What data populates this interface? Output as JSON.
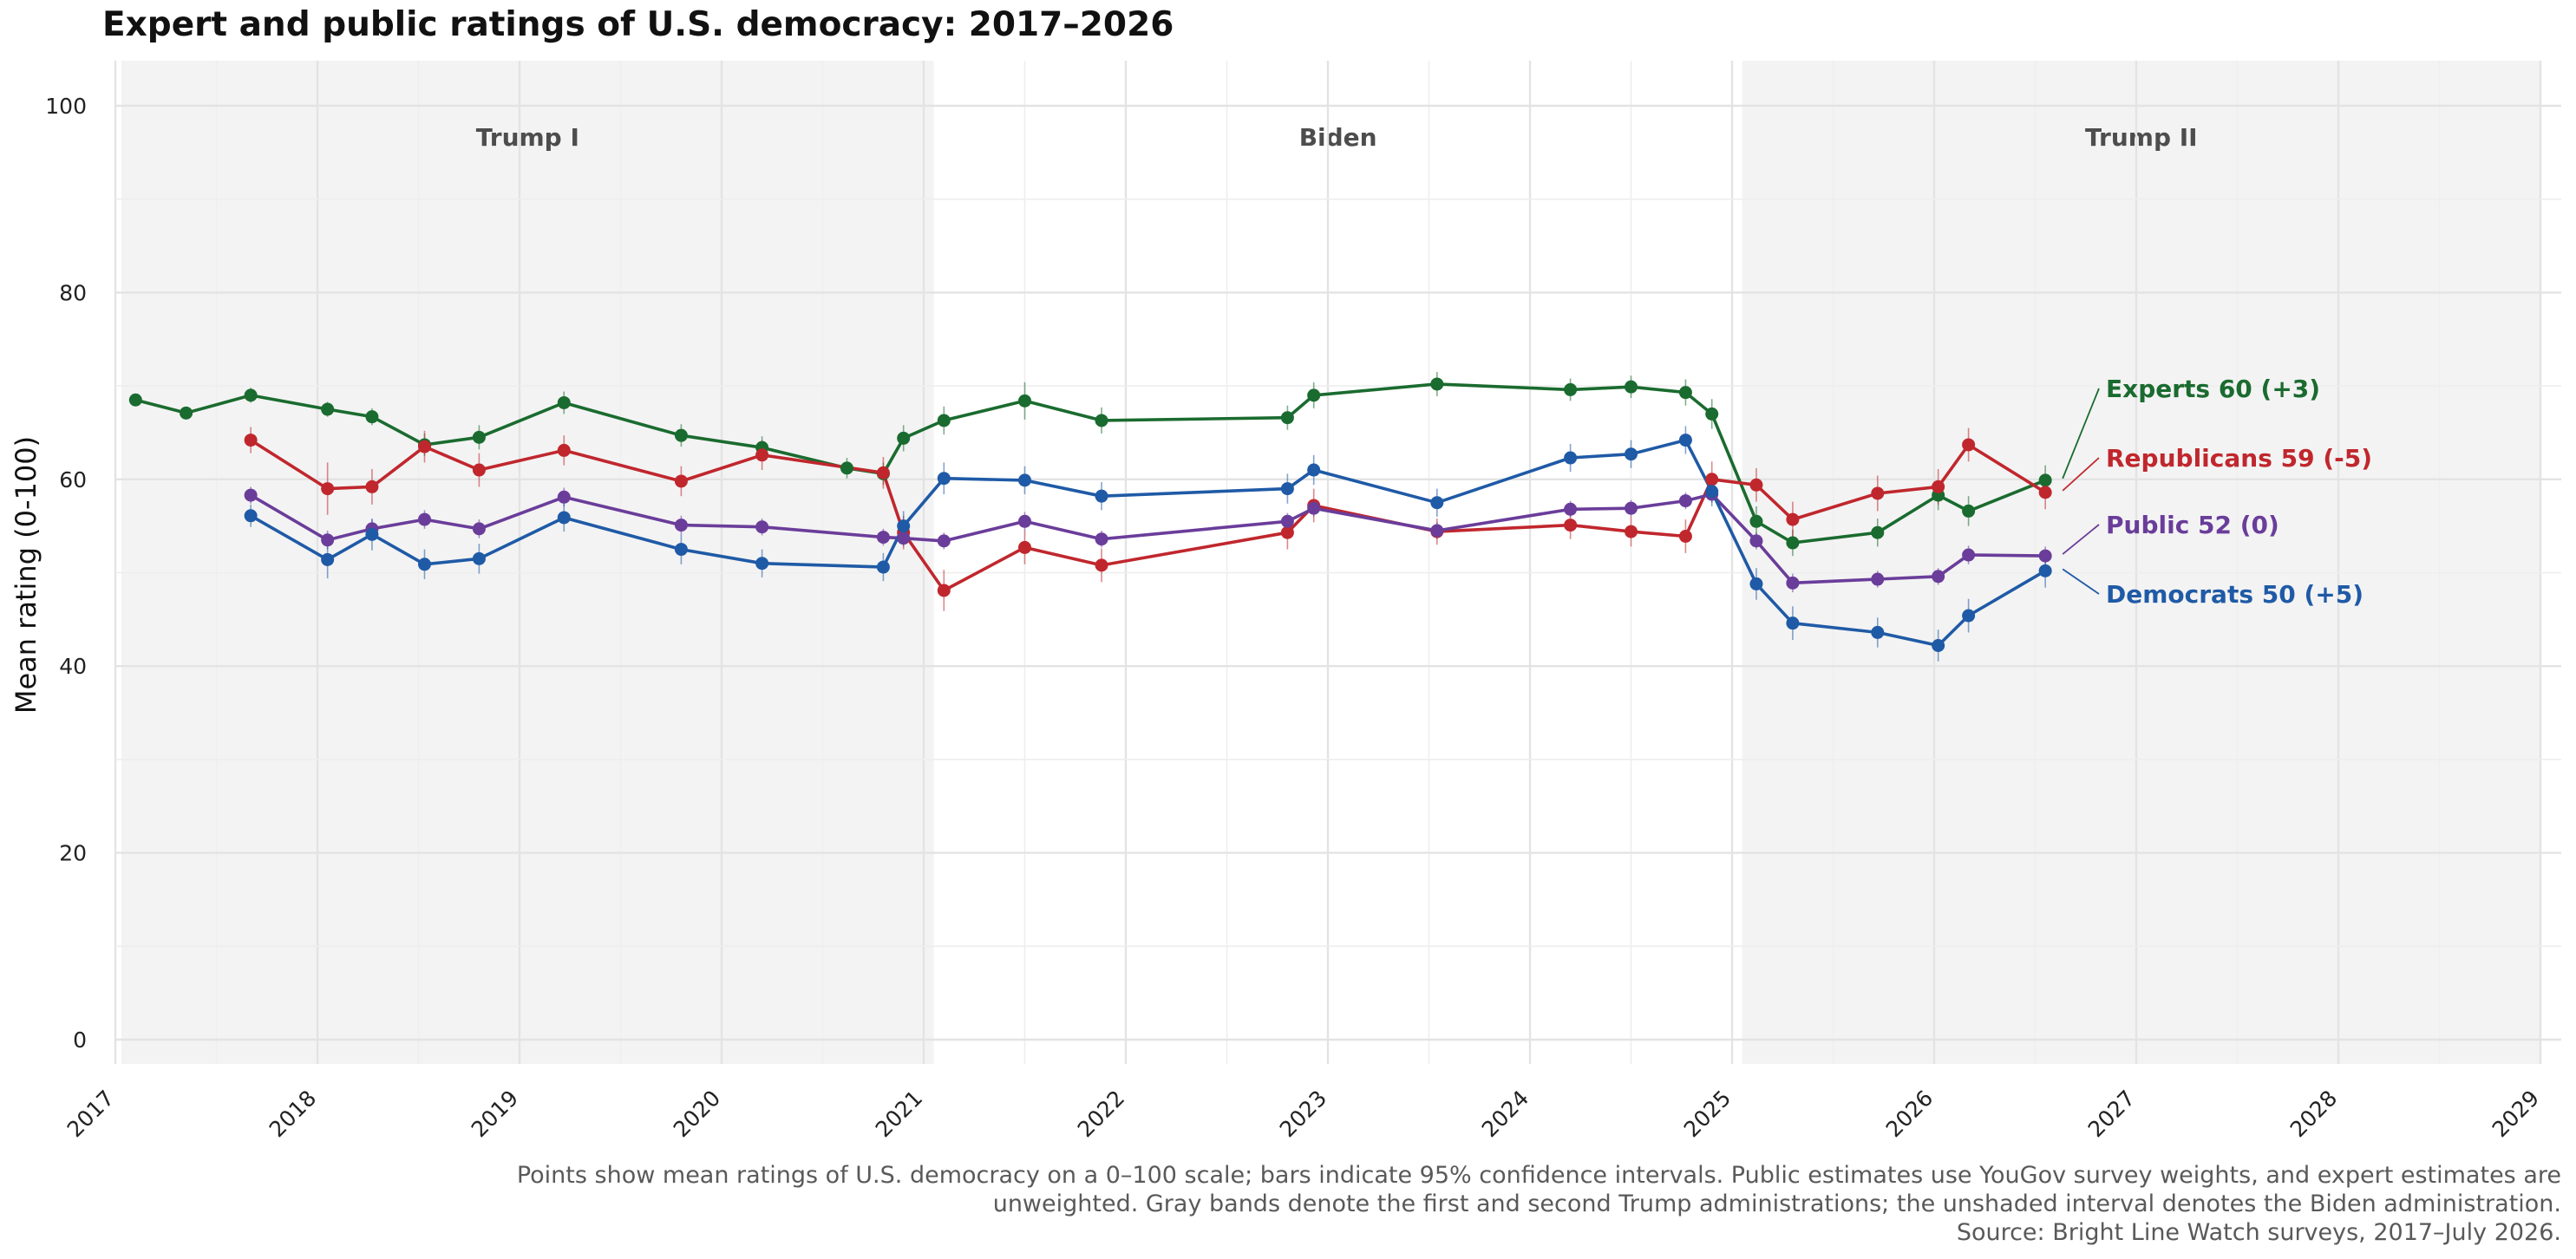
{
  "chart_data": {
    "type": "line",
    "title": "Expert and public ratings of U.S. democracy: 2017–2026",
    "xlabel": "",
    "ylabel": "Mean rating (0-100)",
    "xlim": [
      2017.0,
      2029.0
    ],
    "ylim": [
      -5,
      100
    ],
    "x_ticks": [
      2017,
      2018,
      2019,
      2020,
      2021,
      2022,
      2023,
      2024,
      2025,
      2026,
      2027,
      2028,
      2029
    ],
    "y_ticks": [
      0,
      20,
      40,
      60,
      80,
      100
    ],
    "grid": true,
    "legend": "direct labels at right end of each series",
    "periods": [
      {
        "label": "Trump I",
        "start": 2017.03,
        "end": 2021.05,
        "shaded": true
      },
      {
        "label": "Biden",
        "start": 2021.05,
        "end": 2025.05,
        "shaded": false
      },
      {
        "label": "Trump II",
        "start": 2025.05,
        "end": 2029.0,
        "shaded": true
      }
    ],
    "series": [
      {
        "name": "Experts",
        "label": "Experts 60 (+3)",
        "color": "#1a6b2f",
        "x": [
          2017.1,
          2017.35,
          2017.67,
          2018.05,
          2018.27,
          2018.53,
          2018.8,
          2019.22,
          2019.8,
          2020.2,
          2020.62,
          2020.8,
          2020.9,
          2021.1,
          2021.5,
          2021.88,
          2022.8,
          2022.93,
          2023.54,
          2024.2,
          2024.5,
          2024.77,
          2024.9,
          2025.12,
          2025.3,
          2025.72,
          2026.02,
          2026.17,
          2026.55
        ],
        "y": [
          68.5,
          67.1,
          69.0,
          67.5,
          66.7,
          63.7,
          64.5,
          68.2,
          64.7,
          63.4,
          61.2,
          60.6,
          64.4,
          66.3,
          68.4,
          66.3,
          66.6,
          69.0,
          70.2,
          69.6,
          69.9,
          69.3,
          67.0,
          55.5,
          53.2,
          54.3,
          58.3,
          56.6,
          59.9
        ],
        "ci": [
          0.5,
          0.6,
          0.8,
          0.8,
          0.9,
          1.2,
          1.3,
          1.2,
          1.2,
          1.2,
          1.1,
          1.2,
          1.4,
          1.5,
          2.0,
          1.4,
          1.3,
          1.4,
          1.3,
          1.2,
          1.2,
          1.4,
          1.6,
          1.6,
          1.4,
          1.5,
          1.6,
          1.6,
          1.6
        ]
      },
      {
        "name": "Republicans",
        "label": "Republicans 59 (-5)",
        "color": "#c0272d",
        "x": [
          2017.67,
          2018.05,
          2018.27,
          2018.53,
          2018.8,
          2019.22,
          2019.8,
          2020.2,
          2020.8,
          2020.9,
          2021.1,
          2021.5,
          2021.88,
          2022.8,
          2022.93,
          2023.54,
          2024.2,
          2024.5,
          2024.77,
          2024.9,
          2025.12,
          2025.3,
          2025.72,
          2026.02,
          2026.17,
          2026.55
        ],
        "y": [
          64.2,
          59.0,
          59.2,
          63.5,
          61.0,
          63.1,
          59.8,
          62.6,
          60.7,
          54.3,
          48.1,
          52.7,
          50.8,
          54.3,
          57.2,
          54.4,
          55.1,
          54.4,
          53.9,
          60.0,
          59.4,
          55.7,
          58.5,
          59.2,
          63.7,
          58.6
        ],
        "ci": [
          1.4,
          2.8,
          1.9,
          1.7,
          1.8,
          1.6,
          1.6,
          1.6,
          1.7,
          1.8,
          2.2,
          1.8,
          1.8,
          1.8,
          1.8,
          1.4,
          1.5,
          1.6,
          1.8,
          1.9,
          1.8,
          1.9,
          1.9,
          1.9,
          1.8,
          1.8
        ]
      },
      {
        "name": "Public",
        "label": "Public 52 (0)",
        "color": "#6a3d9a",
        "x": [
          2017.67,
          2018.05,
          2018.27,
          2018.53,
          2018.8,
          2019.22,
          2019.8,
          2020.2,
          2020.8,
          2020.9,
          2021.1,
          2021.5,
          2021.88,
          2022.8,
          2022.93,
          2023.54,
          2024.2,
          2024.5,
          2024.77,
          2024.9,
          2025.12,
          2025.3,
          2025.72,
          2026.02,
          2026.17,
          2026.55
        ],
        "y": [
          58.3,
          53.5,
          54.7,
          55.7,
          54.7,
          58.1,
          55.1,
          54.9,
          53.8,
          53.7,
          53.4,
          55.5,
          53.6,
          55.5,
          56.9,
          54.5,
          56.8,
          56.9,
          57.7,
          58.4,
          53.4,
          48.9,
          49.3,
          49.6,
          51.9,
          51.8
        ],
        "ci": [
          0.9,
          1.0,
          1.0,
          1.0,
          1.0,
          1.0,
          1.0,
          0.9,
          0.9,
          0.9,
          0.9,
          1.0,
          0.9,
          0.9,
          0.9,
          0.9,
          0.9,
          0.9,
          0.9,
          0.9,
          0.9,
          1.0,
          0.9,
          0.9,
          1.0,
          1.0
        ]
      },
      {
        "name": "Democrats",
        "label": "Democrats 50 (+5)",
        "color": "#1f5aa6",
        "x": [
          2017.67,
          2018.05,
          2018.27,
          2018.53,
          2018.8,
          2019.22,
          2019.8,
          2020.2,
          2020.8,
          2020.9,
          2021.1,
          2021.5,
          2021.88,
          2022.8,
          2022.93,
          2023.54,
          2024.2,
          2024.5,
          2024.77,
          2024.9,
          2025.12,
          2025.3,
          2025.72,
          2026.02,
          2026.17,
          2026.55
        ],
        "y": [
          56.1,
          51.4,
          54.1,
          50.9,
          51.5,
          55.9,
          52.5,
          51.0,
          50.6,
          55.0,
          60.1,
          59.9,
          58.2,
          59.0,
          61.0,
          57.5,
          62.3,
          62.7,
          64.2,
          58.7,
          48.8,
          44.6,
          43.6,
          42.2,
          45.4,
          50.2
        ],
        "ci": [
          1.2,
          2.0,
          1.7,
          1.6,
          1.6,
          1.5,
          1.6,
          1.5,
          1.5,
          1.6,
          1.7,
          1.5,
          1.5,
          1.6,
          1.6,
          1.5,
          1.5,
          1.5,
          1.5,
          1.6,
          1.7,
          1.8,
          1.6,
          1.7,
          1.8,
          1.8
        ]
      }
    ]
  },
  "caption": {
    "line1": "Points show mean ratings of U.S. democracy on a 0–100 scale; bars indicate 95% confidence intervals. Public estimates use YouGov survey weights, and expert estimates are",
    "line2": "unweighted. Gray bands denote the first and second Trump administrations; the unshaded interval denotes the Biden administration.",
    "line3": "Source: Bright Line Watch surveys, 2017–July 2026."
  }
}
